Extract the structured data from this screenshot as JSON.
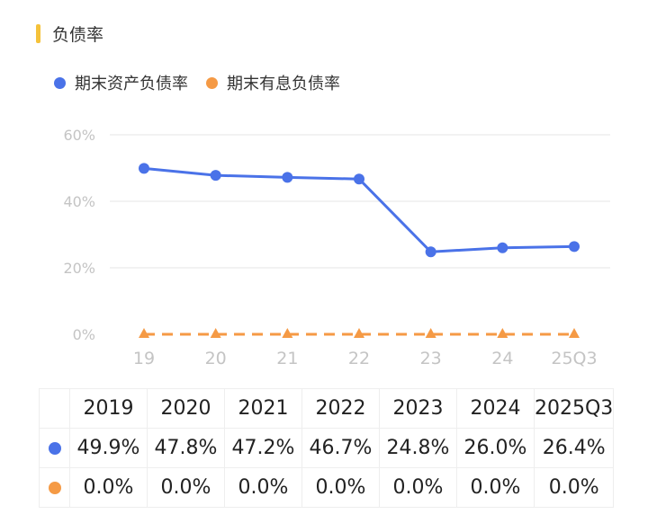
{
  "header": {
    "title": "负债率"
  },
  "colors": {
    "accent": "#f5c23a",
    "series1": "#4a72e8",
    "series2": "#f59a45",
    "grid": "#e6e6e6",
    "axis_text": "#c4c4c4"
  },
  "chart_data": {
    "type": "line",
    "categories": [
      "19",
      "20",
      "21",
      "22",
      "23",
      "24",
      "25Q3"
    ],
    "yticks": [
      "60%",
      "40%",
      "20%",
      "0%"
    ],
    "ylim": [
      0,
      60
    ],
    "grid": true,
    "legend_position": "top-left",
    "series": [
      {
        "name": "期末资产负债率",
        "values": [
          49.9,
          47.8,
          47.2,
          46.7,
          24.8,
          26.0,
          26.4
        ],
        "marker": "circle",
        "line": "solid"
      },
      {
        "name": "期末有息负债率",
        "values": [
          0.0,
          0.0,
          0.0,
          0.0,
          0.0,
          0.0,
          0.0
        ],
        "marker": "triangle",
        "line": "dashed"
      }
    ]
  },
  "table": {
    "headers": [
      "2019",
      "2020",
      "2021",
      "2022",
      "2023",
      "2024",
      "2025Q3"
    ],
    "rows": [
      [
        "49.9%",
        "47.8%",
        "47.2%",
        "46.7%",
        "24.8%",
        "26.0%",
        "26.4%"
      ],
      [
        "0.0%",
        "0.0%",
        "0.0%",
        "0.0%",
        "0.0%",
        "0.0%",
        "0.0%"
      ]
    ]
  }
}
